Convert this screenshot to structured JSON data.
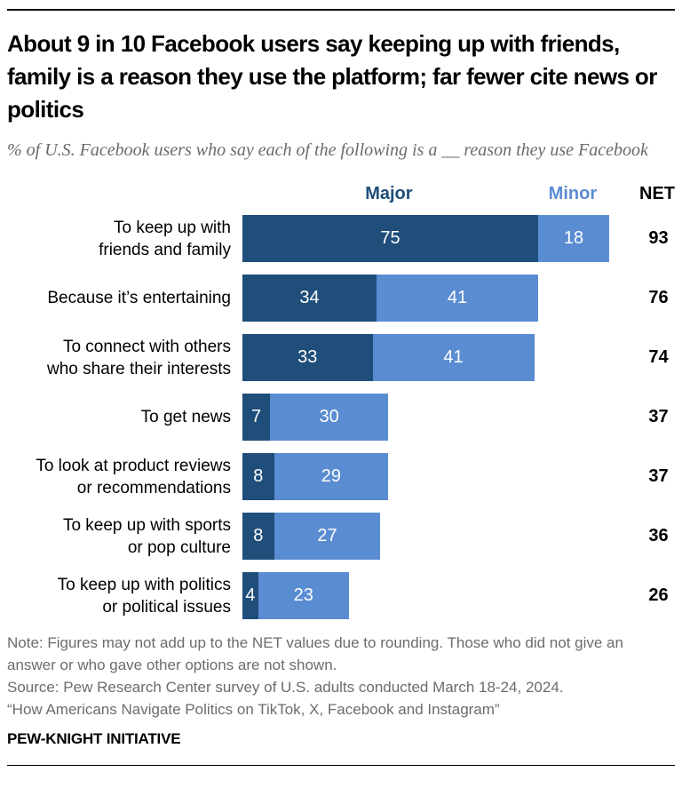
{
  "header": {
    "title": "About 9 in 10 Facebook users say keeping up with friends, family is a reason they use the platform; far fewer cite news or politics",
    "subtitle": "% of U.S. Facebook users who say each of the following is a __ reason they use Facebook"
  },
  "legend": {
    "major_label": "Major",
    "minor_label": "Minor",
    "net_label": "NET"
  },
  "colors": {
    "major_blue": "#1F4E7A",
    "minor_blue": "#5A8CD2",
    "bar_value_text": "#FFFFFF",
    "subtitle_gray": "#6A6A6A",
    "footer_gray": "#6B6C6E",
    "rule_black": "#000000"
  },
  "chart_data": {
    "type": "bar",
    "orientation": "horizontal",
    "stacked": true,
    "title": "About 9 in 10 Facebook users say keeping up with friends, family is a reason they use the platform; far fewer cite news or politics",
    "subtitle": "% of U.S. Facebook users who say each of the following is a __ reason they use Facebook",
    "xlabel": "",
    "ylabel": "",
    "xlim": [
      0,
      100
    ],
    "grid": false,
    "legend_position": "top",
    "categories": [
      "To keep up with\nfriends and family",
      "Because it’s entertaining",
      "To connect with others\nwho share their interests",
      "To get news",
      "To look at product reviews\nor recommendations",
      "To keep up with sports\nor pop culture",
      "To keep up with politics\nor political issues"
    ],
    "series": [
      {
        "name": "Major",
        "color": "#1F4E7A",
        "values": [
          75,
          34,
          33,
          7,
          8,
          8,
          4
        ]
      },
      {
        "name": "Minor",
        "color": "#5A8CD2",
        "values": [
          18,
          41,
          41,
          30,
          29,
          27,
          23
        ]
      }
    ],
    "net_label": "NET",
    "net_values": [
      93,
      76,
      74,
      37,
      37,
      36,
      26
    ]
  },
  "footer": {
    "note": "Note: Figures may not add up to the NET values due to rounding. Those who did not give an answer or who gave other options are not shown.",
    "source": "Source: Pew Research Center survey of U.S. adults conducted March 18-24, 2024.",
    "survey": "“How Americans Navigate Politics on TikTok, X, Facebook and Instagram”",
    "brand": "PEW-KNIGHT INITIATIVE"
  }
}
